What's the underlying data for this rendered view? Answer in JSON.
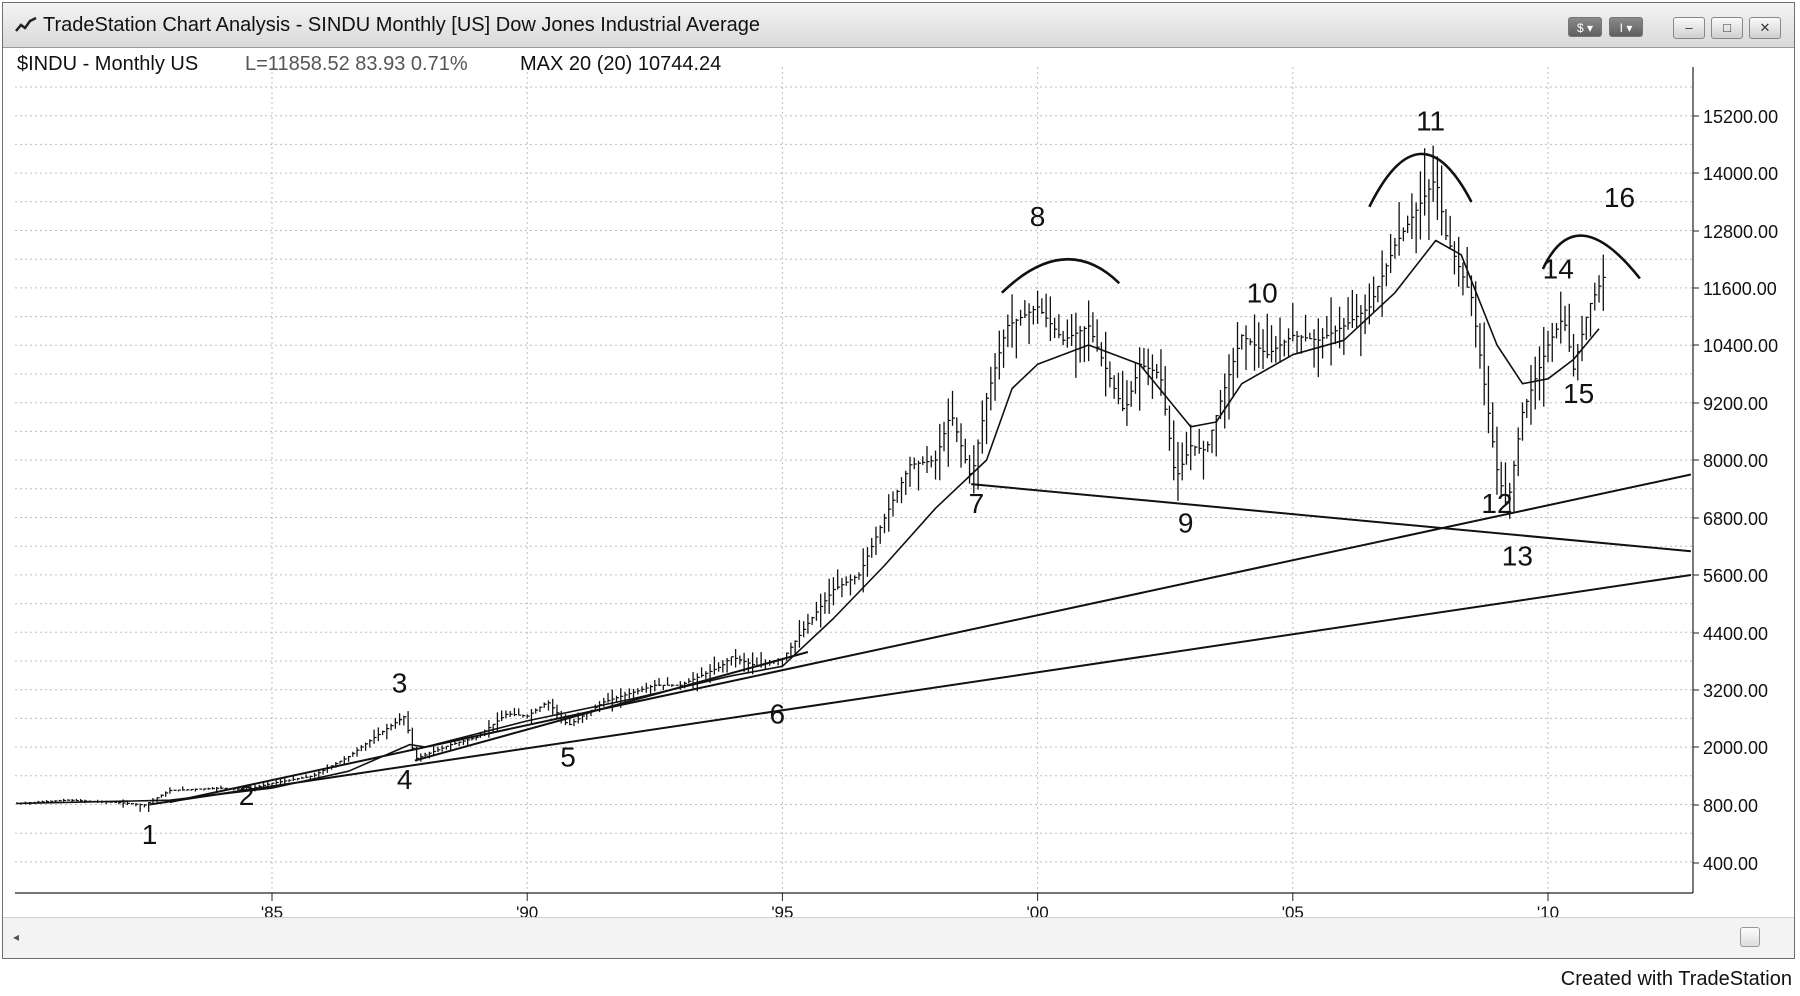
{
  "window": {
    "title": "TradeStation Chart Analysis - SINDU Monthly [US] Dow Jones Industrial Average",
    "controls": {
      "dropdown1": "$",
      "dropdown2": "I",
      "minimize": "–",
      "restore": "□",
      "close": "✕"
    }
  },
  "header": {
    "symbol": "$INDU - Monthly US",
    "last": "L=11858.52 83.93 0.71%",
    "indicator": "MAX 20 (20) 10744.24"
  },
  "footer": "Created with TradeStation",
  "icons": [
    "tradestation-chart-icon",
    "scroll-left-arrow-icon",
    "scroll-right-button-icon"
  ],
  "chart_data": {
    "type": "bar",
    "subtype": "monthly-ohlc-with-moving-average",
    "x_ticks": [
      "'85",
      "'90",
      "'95",
      "'00",
      "'05",
      "'10"
    ],
    "x_tick_years": [
      1985,
      1990,
      1995,
      2000,
      2005,
      2010
    ],
    "xlim": [
      1980.0,
      2012.9
    ],
    "y_ticks": [
      "15200.00",
      "14000.00",
      "12800.00",
      "11600.00",
      "10400.00",
      "9200.00",
      "8000.00",
      "6800.00",
      "5600.00",
      "4400.00",
      "3200.00",
      "2000.00",
      "800.00",
      "400.00"
    ],
    "y_axis_side": "right",
    "grid": "dotted",
    "price_path": [
      [
        1980.0,
        830
      ],
      [
        1981.0,
        900
      ],
      [
        1982.0,
        850
      ],
      [
        1982.5,
        800
      ],
      [
        1983.0,
        1100
      ],
      [
        1984.0,
        1150
      ],
      [
        1984.5,
        1120
      ],
      [
        1985.0,
        1250
      ],
      [
        1985.8,
        1400
      ],
      [
        1986.5,
        1800
      ],
      [
        1987.0,
        2200
      ],
      [
        1987.6,
        2650
      ],
      [
        1987.8,
        1750
      ],
      [
        1988.5,
        2050
      ],
      [
        1989.0,
        2200
      ],
      [
        1989.6,
        2700
      ],
      [
        1990.0,
        2650
      ],
      [
        1990.4,
        2950
      ],
      [
        1990.8,
        2450
      ],
      [
        1991.5,
        2950
      ],
      [
        1992.5,
        3300
      ],
      [
        1993.0,
        3300
      ],
      [
        1993.8,
        3700
      ],
      [
        1994.0,
        3900
      ],
      [
        1994.5,
        3700
      ],
      [
        1995.0,
        3850
      ],
      [
        1995.5,
        4600
      ],
      [
        1996.0,
        5300
      ],
      [
        1996.5,
        5600
      ],
      [
        1997.0,
        6800
      ],
      [
        1997.5,
        7900
      ],
      [
        1998.0,
        8000
      ],
      [
        1998.3,
        9000
      ],
      [
        1998.7,
        7600
      ],
      [
        1999.0,
        9300
      ],
      [
        1999.4,
        10800
      ],
      [
        2000.0,
        11200
      ],
      [
        2000.5,
        10500
      ],
      [
        2001.0,
        10800
      ],
      [
        2001.3,
        10000
      ],
      [
        2001.7,
        9000
      ],
      [
        2002.0,
        10000
      ],
      [
        2002.4,
        9800
      ],
      [
        2002.7,
        7600
      ],
      [
        2003.0,
        8300
      ],
      [
        2003.3,
        8200
      ],
      [
        2003.6,
        9300
      ],
      [
        2004.0,
        10600
      ],
      [
        2004.5,
        10200
      ],
      [
        2005.0,
        10600
      ],
      [
        2005.5,
        10500
      ],
      [
        2006.0,
        10800
      ],
      [
        2006.5,
        11200
      ],
      [
        2007.0,
        12500
      ],
      [
        2007.8,
        13900
      ],
      [
        2008.0,
        12700
      ],
      [
        2008.5,
        11400
      ],
      [
        2008.9,
        8500
      ],
      [
        2009.0,
        7800
      ],
      [
        2009.2,
        7000
      ],
      [
        2009.5,
        9000
      ],
      [
        2010.0,
        10400
      ],
      [
        2010.3,
        11000
      ],
      [
        2010.5,
        9900
      ],
      [
        2010.8,
        11200
      ],
      [
        2011.1,
        11860
      ]
    ],
    "moving_average_path": [
      [
        1980.0,
        830
      ],
      [
        1983.0,
        900
      ],
      [
        1985.0,
        1150
      ],
      [
        1986.5,
        1500
      ],
      [
        1987.7,
        2050
      ],
      [
        1988.0,
        2000
      ],
      [
        1990.0,
        2550
      ],
      [
        1992.0,
        3000
      ],
      [
        1994.0,
        3500
      ],
      [
        1995.0,
        3700
      ],
      [
        1996.0,
        4700
      ],
      [
        1997.0,
        5800
      ],
      [
        1998.0,
        7000
      ],
      [
        1999.0,
        8000
      ],
      [
        1999.5,
        9500
      ],
      [
        2000.0,
        10000
      ],
      [
        2001.0,
        10400
      ],
      [
        2002.0,
        10000
      ],
      [
        2003.0,
        8700
      ],
      [
        2003.5,
        8800
      ],
      [
        2004.0,
        9600
      ],
      [
        2005.0,
        10200
      ],
      [
        2006.0,
        10500
      ],
      [
        2007.0,
        11500
      ],
      [
        2007.8,
        12600
      ],
      [
        2008.3,
        12300
      ],
      [
        2009.0,
        10400
      ],
      [
        2009.5,
        9600
      ],
      [
        2010.0,
        9700
      ],
      [
        2010.5,
        10100
      ],
      [
        2011.0,
        10744
      ]
    ],
    "trendlines": [
      {
        "from": [
          1982.6,
          810
        ],
        "to": [
          2012.8,
          5600
        ]
      },
      {
        "from": [
          1983.0,
          860
        ],
        "to": [
          2012.8,
          7700
        ]
      },
      {
        "from": [
          1998.7,
          7500
        ],
        "to": [
          2012.8,
          6100
        ]
      },
      {
        "from": [
          1987.8,
          1720
        ],
        "to": [
          1995.5,
          4000
        ]
      }
    ],
    "arcs": [
      {
        "from": [
          1999.3,
          11500
        ],
        "peak": [
          2000.5,
          12200
        ],
        "to": [
          2001.6,
          11700
        ]
      },
      {
        "from": [
          2006.5,
          13300
        ],
        "peak": [
          2007.5,
          14400
        ],
        "to": [
          2008.5,
          13400
        ]
      },
      {
        "from": [
          2009.9,
          12000
        ],
        "peak": [
          2010.7,
          12700
        ],
        "to": [
          2011.8,
          11800
        ]
      }
    ],
    "annotations": [
      {
        "text": "1",
        "x": 1982.6,
        "y": 530
      },
      {
        "text": "2",
        "x": 1984.5,
        "y": 800
      },
      {
        "text": "3",
        "x": 1987.5,
        "y": 3150
      },
      {
        "text": "4",
        "x": 1987.6,
        "y": 1130
      },
      {
        "text": "5",
        "x": 1990.8,
        "y": 1600
      },
      {
        "text": "6",
        "x": 1994.9,
        "y": 2500
      },
      {
        "text": "7",
        "x": 1998.8,
        "y": 6900
      },
      {
        "text": "8",
        "x": 2000.0,
        "y": 12900
      },
      {
        "text": "9",
        "x": 2002.9,
        "y": 6500
      },
      {
        "text": "10",
        "x": 2004.4,
        "y": 11300
      },
      {
        "text": "11",
        "x": 2007.7,
        "y": 14900
      },
      {
        "text": "12",
        "x": 2009.0,
        "y": 6900
      },
      {
        "text": "13",
        "x": 2009.4,
        "y": 5800
      },
      {
        "text": "14",
        "x": 2010.2,
        "y": 11800
      },
      {
        "text": "15",
        "x": 2010.6,
        "y": 9200
      },
      {
        "text": "16",
        "x": 2011.4,
        "y": 13300
      }
    ]
  }
}
